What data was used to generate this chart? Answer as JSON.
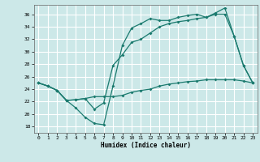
{
  "xlabel": "Humidex (Indice chaleur)",
  "background_color": "#cce8e8",
  "grid_color": "#ffffff",
  "line_color": "#1a7a6e",
  "xlim": [
    -0.5,
    23.5
  ],
  "ylim": [
    17.0,
    37.5
  ],
  "yticks": [
    18,
    20,
    22,
    24,
    26,
    28,
    30,
    32,
    34,
    36
  ],
  "xticks": [
    0,
    1,
    2,
    3,
    4,
    5,
    6,
    7,
    8,
    9,
    10,
    11,
    12,
    13,
    14,
    15,
    16,
    17,
    18,
    19,
    20,
    21,
    22,
    23
  ],
  "line1_x": [
    0,
    1,
    2,
    3,
    4,
    5,
    6,
    7,
    8,
    9,
    10,
    11,
    12,
    13,
    14,
    15,
    16,
    17,
    18,
    19,
    20,
    21,
    22,
    23
  ],
  "line1_y": [
    25.0,
    24.5,
    23.8,
    22.2,
    21.0,
    19.5,
    18.5,
    18.3,
    24.5,
    31.0,
    33.8,
    34.5,
    35.3,
    35.0,
    35.0,
    35.5,
    35.8,
    36.0,
    35.5,
    36.2,
    37.0,
    32.5,
    27.8,
    25.0
  ],
  "line2_x": [
    0,
    1,
    2,
    3,
    4,
    5,
    6,
    7,
    8,
    9,
    10,
    11,
    12,
    13,
    14,
    15,
    16,
    17,
    18,
    19,
    20,
    21,
    22,
    23
  ],
  "line2_y": [
    25.0,
    24.5,
    23.8,
    22.2,
    22.3,
    22.5,
    20.8,
    21.8,
    27.8,
    29.5,
    31.5,
    32.0,
    33.0,
    34.0,
    34.5,
    34.8,
    35.0,
    35.3,
    35.5,
    36.0,
    36.0,
    32.5,
    27.8,
    25.0
  ],
  "line3_x": [
    0,
    1,
    2,
    3,
    4,
    5,
    6,
    7,
    8,
    9,
    10,
    11,
    12,
    13,
    14,
    15,
    16,
    17,
    18,
    19,
    20,
    21,
    22,
    23
  ],
  "line3_y": [
    25.0,
    24.5,
    23.8,
    22.2,
    22.3,
    22.5,
    22.8,
    22.8,
    22.8,
    23.0,
    23.5,
    23.8,
    24.0,
    24.5,
    24.8,
    25.0,
    25.2,
    25.3,
    25.5,
    25.5,
    25.5,
    25.5,
    25.3,
    25.0
  ]
}
